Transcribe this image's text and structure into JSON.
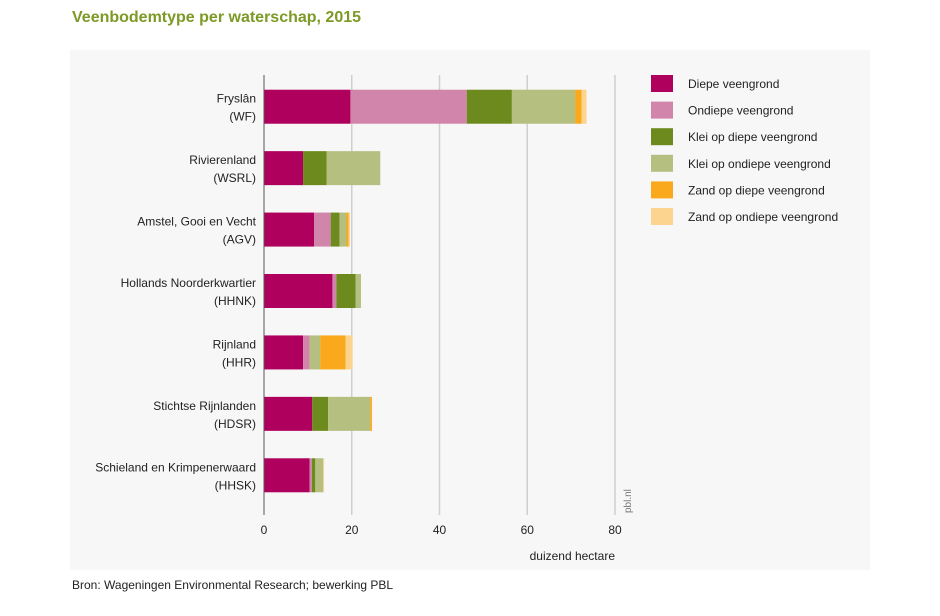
{
  "title": "Veenbodemtype per waterschap, 2015",
  "source": "Bron: Wageningen Environmental Research; bewerking PBL",
  "watermark": "pbl.nl",
  "chart_data": {
    "type": "bar",
    "orientation": "horizontal",
    "stacked": true,
    "categories": [
      [
        "Fryslân",
        "(WF)"
      ],
      [
        "Rivierenland",
        "(WSRL)"
      ],
      [
        "Amstel, Gooi en Vecht",
        "(AGV)"
      ],
      [
        "Hollands Noorderkwartier",
        "(HHNK)"
      ],
      [
        "Rijnland",
        "(HHR)"
      ],
      [
        "Stichtse Rijnlanden",
        "(HDSR)"
      ],
      [
        "Schieland en Krimpenerwaard",
        "(HHSK)"
      ]
    ],
    "series": [
      {
        "name": "Diepe veengrond",
        "color": "#b0005e",
        "values": [
          19.7,
          8.9,
          11.4,
          15.6,
          8.9,
          11.0,
          10.4
        ]
      },
      {
        "name": "Ondiepe veengrond",
        "color": "#d285ab",
        "values": [
          26.5,
          0.0,
          3.8,
          0.9,
          1.5,
          0.0,
          0.5
        ]
      },
      {
        "name": "Klei op diepe veengrond",
        "color": "#6d8a1e",
        "values": [
          10.3,
          5.4,
          2.0,
          4.4,
          0.0,
          3.6,
          0.8
        ]
      },
      {
        "name": "Klei op ondiepe veengrond",
        "color": "#b4bf80",
        "values": [
          14.4,
          12.2,
          1.6,
          1.2,
          2.4,
          9.6,
          1.8
        ]
      },
      {
        "name": "Zand op diepe veengrond",
        "color": "#f9a91b",
        "values": [
          1.5,
          0.0,
          0.5,
          0.0,
          5.8,
          0.4,
          0.0
        ]
      },
      {
        "name": "Zand op ondiepe veengrond",
        "color": "#fcd38f",
        "values": [
          1.1,
          0.0,
          0.3,
          0.0,
          1.6,
          0.0,
          0.2
        ]
      }
    ],
    "xlabel": "duizend hectare",
    "xlim": [
      0,
      80
    ],
    "xticks": [
      "0",
      "20",
      "40",
      "60",
      "80"
    ],
    "grid": true,
    "legend_position": "right"
  }
}
